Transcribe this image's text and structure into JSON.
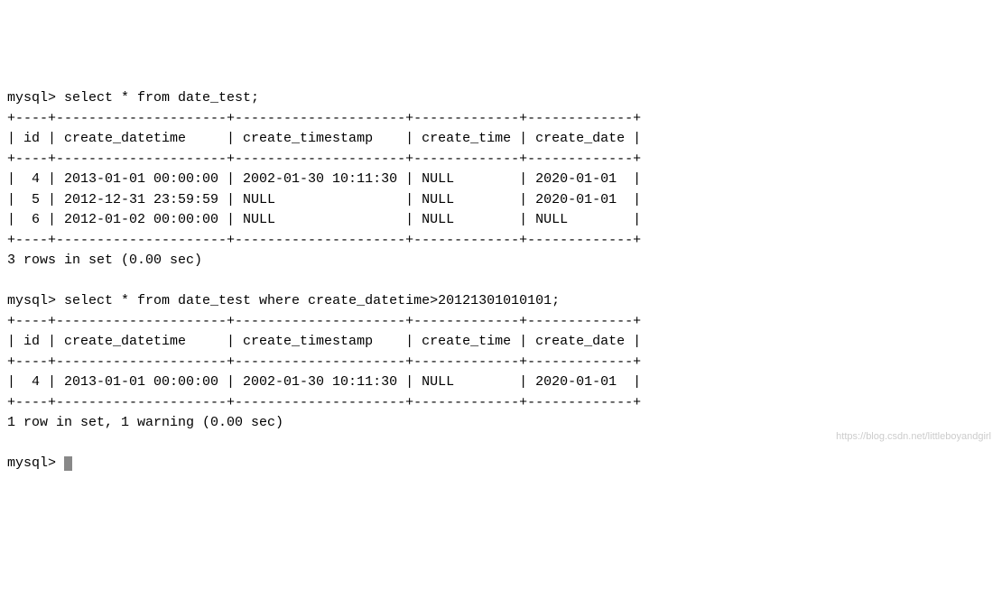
{
  "query1": {
    "prompt": "mysql> ",
    "sql": "select * from date_test;",
    "table": {
      "border_top": "+----+---------------------+---------------------+-------------+-------------+",
      "header_row": "| id | create_datetime     | create_timestamp    | create_time | create_date |",
      "border_mid": "+----+---------------------+---------------------+-------------+-------------+",
      "rows": [
        "|  4 | 2013-01-01 00:00:00 | 2002-01-30 10:11:30 | NULL        | 2020-01-01  |",
        "|  5 | 2012-12-31 23:59:59 | NULL                | NULL        | 2020-01-01  |",
        "|  6 | 2012-01-02 00:00:00 | NULL                | NULL        | NULL        |"
      ],
      "border_bot": "+----+---------------------+---------------------+-------------+-------------+"
    },
    "result_msg": "3 rows in set (0.00 sec)"
  },
  "query2": {
    "prompt": "mysql> ",
    "sql": "select * from date_test where create_datetime>20121301010101;",
    "table": {
      "border_top": "+----+---------------------+---------------------+-------------+-------------+",
      "header_row": "| id | create_datetime     | create_timestamp    | create_time | create_date |",
      "border_mid": "+----+---------------------+---------------------+-------------+-------------+",
      "rows": [
        "|  4 | 2013-01-01 00:00:00 | 2002-01-30 10:11:30 | NULL        | 2020-01-01  |"
      ],
      "border_bot": "+----+---------------------+---------------------+-------------+-------------+"
    },
    "result_msg": "1 row in set, 1 warning (0.00 sec)"
  },
  "final_prompt": "mysql> ",
  "watermark": "https://blog.csdn.net/littleboyandgirl"
}
